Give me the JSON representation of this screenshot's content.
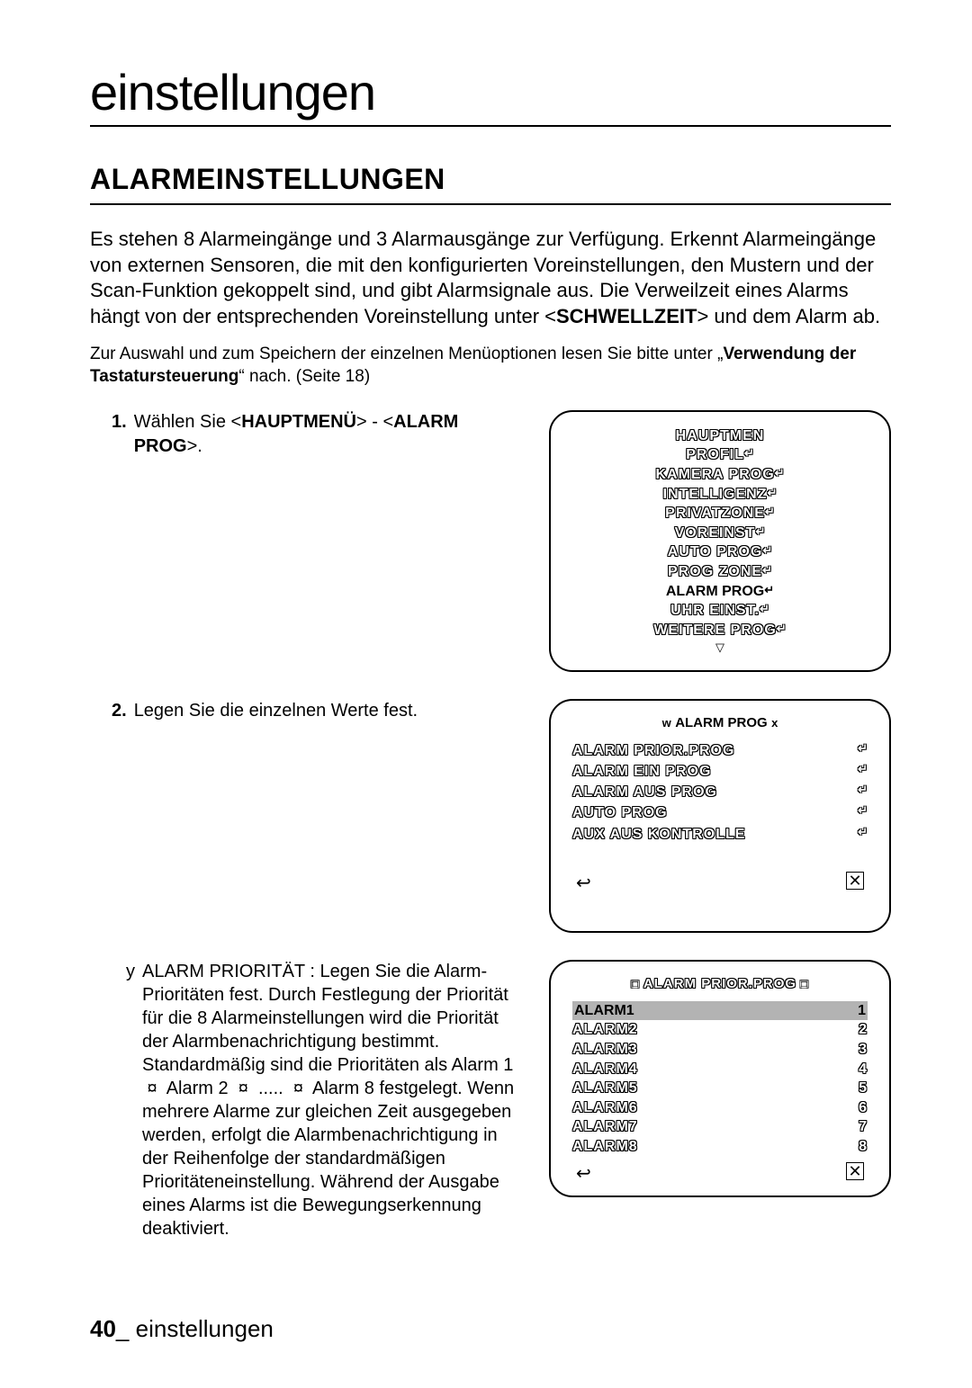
{
  "title": "einstellungen",
  "section_heading": "ALARMEINSTELLUNGEN",
  "intro_html": "Es stehen 8 Alarmeingänge und 3 Alarmausgänge zur Verfügung. Erkennt Alarmeingänge von externen Sensoren, die mit den konfigurierten Voreinstellungen, den Mustern und der Scan-Funktion gekoppelt sind, und gibt Alarmsignale aus. Die Verweilzeit eines Alarms hängt von der entsprechenden Voreinstellung unter &lt;<b>SCHWELLZEIT</b>&gt; und dem Alarm ab.",
  "note_html": "Zur Auswahl und zum Speichern der einzelnen Menüoptionen lesen Sie bitte unter „<b>Verwendung der Tastatursteuerung</b>“ nach. (Seite 18)",
  "step1_num": "1.",
  "step1_html": "Wählen Sie &lt;<b>HAUPTMENÜ</b>&gt; - &lt;<b>ALARM PROG</b>&gt;.",
  "step2_num": "2.",
  "step2_text": "Legen Sie die einzelnen Werte fest.",
  "sub_key": "y",
  "sub_html": "ALARM PRIORITÄT : Legen Sie die Alarm-Prioritäten fest. Durch Festlegung der Priorität für die 8 Alarmeinstellungen wird die Priorität der Alarmbenachrichtigung bestimmt. Standardmäßig sind die Prioritäten als Alarm 1 &nbsp;¤&nbsp; Alarm 2 &nbsp;¤&nbsp; ..... &nbsp;¤&nbsp; Alarm 8 festgelegt. Wenn mehrere Alarme zur gleichen Zeit ausgegeben werden, erfolgt die Alarmbenachrichtigung in der Reihenfolge der standardmäßigen Prioritäteneinstellung. Während der Ausgabe eines Alarms ist die Bewegungserkennung deaktiviert.",
  "panel1": {
    "title": "HAUPTMEN",
    "items": [
      {
        "label": "PROFIL",
        "outline": true
      },
      {
        "label": "KAMERA PROG",
        "outline": true
      },
      {
        "label": "INTELLIGENZ",
        "outline": true
      },
      {
        "label": "PRIVATZONE",
        "outline": true
      },
      {
        "label": "VOREINST",
        "outline": true
      },
      {
        "label": "AUTO PROG",
        "outline": true
      },
      {
        "label": "PROG ZONE",
        "outline": true
      },
      {
        "label": "ALARM PROG",
        "outline": false
      },
      {
        "label": "UHR EINST.",
        "outline": true
      },
      {
        "label": "WEITERE PROG",
        "outline": true
      }
    ],
    "arrow": "▽"
  },
  "panel2": {
    "nav_left": "w",
    "title": "ALARM PROG",
    "nav_right": "x",
    "items": [
      {
        "label": "ALARM PRIOR.PROG",
        "outline": true
      },
      {
        "label": "ALARM EIN PROG",
        "outline": true
      },
      {
        "label": "ALARM AUS PROG",
        "outline": true
      },
      {
        "label": "AUTO PROG",
        "outline": true
      },
      {
        "label": "AUX AUS KONTROLLE",
        "outline": true
      }
    ]
  },
  "panel3": {
    "nav_left": "□",
    "title": "ALARM PRIOR.PROG",
    "nav_right": "□",
    "alarms": [
      {
        "name": "ALARM1",
        "val": "1",
        "hl": true
      },
      {
        "name": "ALARM2",
        "val": "2",
        "hl": false
      },
      {
        "name": "ALARM3",
        "val": "3",
        "hl": false
      },
      {
        "name": "ALARM4",
        "val": "4",
        "hl": false
      },
      {
        "name": "ALARM5",
        "val": "5",
        "hl": false
      },
      {
        "name": "ALARM6",
        "val": "6",
        "hl": false
      },
      {
        "name": "ALARM7",
        "val": "7",
        "hl": false
      },
      {
        "name": "ALARM8",
        "val": "8",
        "hl": false
      }
    ]
  },
  "footer_page": "40",
  "footer_sep": "_",
  "footer_text": "einstellungen",
  "enter_glyph": "↵",
  "back_glyph": "↩",
  "close_glyph": "✕"
}
